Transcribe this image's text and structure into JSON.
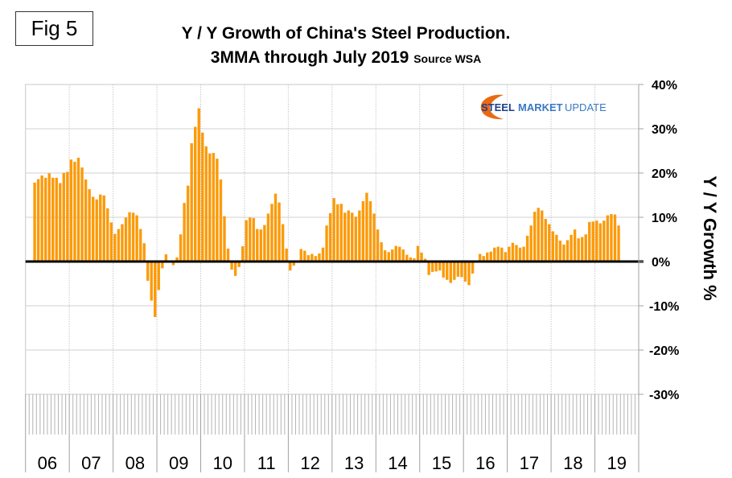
{
  "figure_label": "Fig 5",
  "logo": {
    "word1": "STEEL",
    "word2": "MARKET",
    "word3": "UPDATE",
    "colors": {
      "dark_blue": "#1f3f8f",
      "light_blue": "#3a78c2",
      "swoosh": "#ea6a12"
    }
  },
  "colors": {
    "bar": "#ff9900",
    "bar_edge": "#f0a020",
    "zero_line": "#000000",
    "grid": "#d0d0d0",
    "axis": "#a0a0a0"
  },
  "chart_data": {
    "type": "bar",
    "title": "Y / Y Growth of China's Steel Production.",
    "subtitle": "3MMA through July 2019",
    "source": "Source WSA",
    "xlabel": "",
    "ylabel": "Y / Y Growth %",
    "ylim": [
      -30,
      40
    ],
    "yticks": [
      40,
      30,
      20,
      10,
      0,
      -10,
      -20,
      -30
    ],
    "ytick_labels": [
      "40%",
      "30%",
      "20%",
      "10%",
      "0%",
      "-10%",
      "-20%",
      "-30%"
    ],
    "x_range": [
      "2006-01",
      "2019-12"
    ],
    "x_year_labels": [
      "06",
      "07",
      "08",
      "09",
      "10",
      "11",
      "12",
      "13",
      "14",
      "15",
      "16",
      "17",
      "18",
      "19"
    ],
    "grid": true,
    "y_axis_side": "right",
    "start_month": "2006-03",
    "end_month": "2019-07",
    "series": [
      {
        "name": "Y/Y Growth 3MMA (%)",
        "values": [
          17.8,
          18.6,
          19.4,
          18.9,
          19.9,
          18.9,
          18.9,
          17.7,
          20.0,
          20.2,
          23.0,
          22.5,
          23.4,
          21.2,
          18.5,
          16.3,
          14.6,
          14.0,
          15.1,
          14.9,
          12.0,
          8.8,
          6.2,
          7.3,
          8.4,
          9.9,
          11.1,
          11.0,
          10.4,
          7.3,
          4.1,
          -4.3,
          -8.8,
          -12.5,
          -6.4,
          -1.5,
          1.6,
          0.1,
          -0.8,
          0.9,
          6.1,
          13.2,
          17.1,
          26.7,
          30.4,
          34.6,
          29.1,
          26.0,
          24.4,
          24.5,
          23.2,
          18.5,
          10.2,
          2.9,
          -1.8,
          -3.2,
          -1.2,
          3.4,
          9.3,
          9.9,
          9.8,
          7.3,
          7.2,
          8.2,
          10.8,
          13.0,
          15.3,
          13.3,
          8.4,
          2.9,
          -2.0,
          -0.9,
          0.1,
          2.8,
          2.4,
          1.4,
          1.7,
          1.2,
          1.8,
          3.1,
          8.1,
          10.9,
          14.3,
          12.9,
          13.0,
          11.0,
          11.5,
          11.0,
          10.1,
          11.5,
          13.6,
          15.5,
          13.6,
          10.8,
          7.2,
          4.3,
          2.5,
          2.1,
          2.7,
          3.5,
          3.3,
          2.7,
          1.5,
          0.9,
          0.7,
          3.5,
          2.0,
          0.6,
          -3.0,
          -2.3,
          -2.2,
          -2.0,
          -3.6,
          -4.1,
          -4.8,
          -4.1,
          -3.4,
          -3.5,
          -4.5,
          -5.3,
          -2.7,
          0.1,
          1.7,
          1.2,
          2.0,
          2.2,
          3.1,
          3.3,
          3.1,
          2.1,
          3.3,
          4.2,
          3.7,
          3.1,
          3.3,
          5.8,
          8.1,
          11.2,
          12.1,
          11.5,
          9.6,
          8.4,
          6.8,
          6.0,
          4.7,
          3.8,
          4.8,
          6.0,
          7.2,
          5.2,
          5.5,
          6.1,
          8.9,
          9.0,
          9.2,
          8.6,
          9.2,
          10.4,
          10.7,
          10.6,
          8.1
        ]
      }
    ]
  }
}
